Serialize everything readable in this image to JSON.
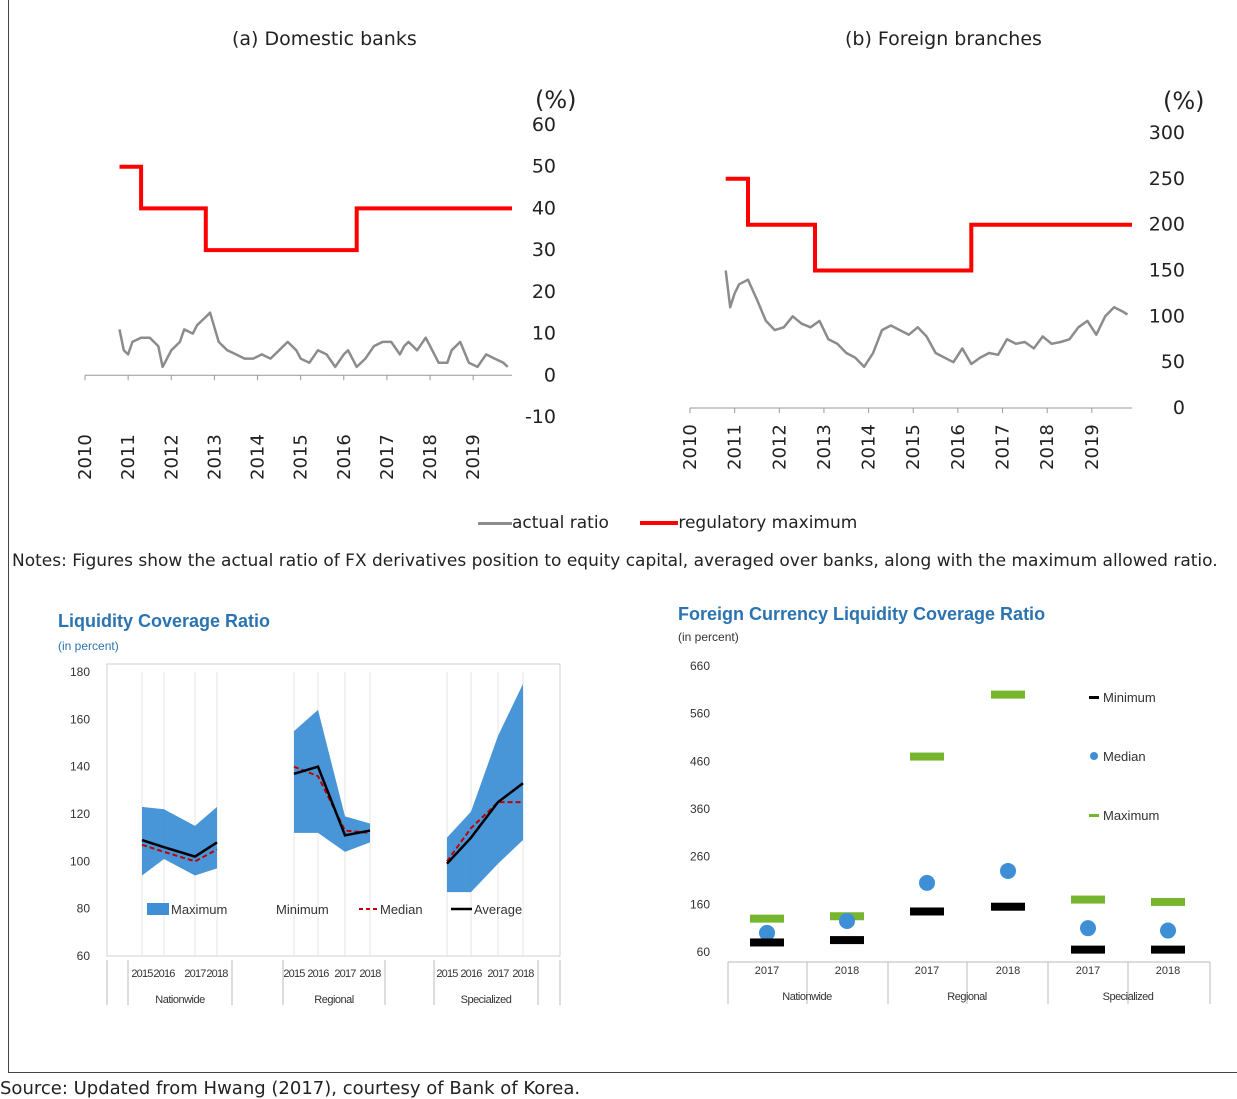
{
  "header": {
    "banner": ""
  },
  "legend_top": {
    "actual": "actual ratio",
    "maximum": "regulatory maximum"
  },
  "notes": "Notes: Figures show the actual ratio of FX derivatives position to equity capital, averaged over banks, along with the maximum allowed ratio.",
  "source": "Source: Updated from Hwang (2017), courtesy of Bank of Korea.",
  "colors": {
    "actual": "#8c8c8c",
    "maximum": "#ff0000",
    "band": "#3e8fd6",
    "average": "#000000",
    "median": "#c00000",
    "fcl_max": "#77b52e",
    "fcl_median": "#3e8fd6",
    "fcl_min": "#000000"
  },
  "chart_data": [
    {
      "type": "line",
      "title": "(a) Domestic banks",
      "unit": "(%)",
      "x_ticks": [
        "2010",
        "2011",
        "2012",
        "2013",
        "2014",
        "2015",
        "2016",
        "2017",
        "2018",
        "2019"
      ],
      "y_ticks": [
        "60",
        "50",
        "40",
        "30",
        "20",
        "10",
        "0",
        "-10"
      ],
      "ylim": [
        -10,
        60
      ],
      "xlim": [
        2010,
        2019.9
      ],
      "series": [
        {
          "key": "maximum",
          "x": [
            2010.8,
            2011.3,
            2011.3,
            2012.8,
            2012.8,
            2016.3,
            2016.3,
            2019.9
          ],
          "y": [
            50,
            50,
            40,
            40,
            30,
            30,
            40,
            40
          ]
        },
        {
          "key": "actual",
          "x": [
            2010.8,
            2010.9,
            2011.0,
            2011.1,
            2011.3,
            2011.5,
            2011.7,
            2011.8,
            2012.0,
            2012.2,
            2012.3,
            2012.5,
            2012.6,
            2012.8,
            2012.9,
            2013.1,
            2013.3,
            2013.5,
            2013.7,
            2013.9,
            2014.1,
            2014.3,
            2014.5,
            2014.7,
            2014.9,
            2015.0,
            2015.2,
            2015.4,
            2015.6,
            2015.8,
            2016.0,
            2016.1,
            2016.3,
            2016.5,
            2016.7,
            2016.9,
            2017.1,
            2017.3,
            2017.4,
            2017.5,
            2017.7,
            2017.9,
            2018.0,
            2018.2,
            2018.4,
            2018.5,
            2018.7,
            2018.9,
            2019.1,
            2019.3,
            2019.5,
            2019.7,
            2019.8
          ],
          "y": [
            11,
            6,
            5,
            8,
            9,
            9,
            7,
            2,
            6,
            8,
            11,
            10,
            12,
            14,
            15,
            8,
            6,
            5,
            4,
            4,
            5,
            4,
            6,
            8,
            6,
            4,
            3,
            6,
            5,
            2,
            5,
            6,
            2,
            4,
            7,
            8,
            8,
            5,
            7,
            8,
            6,
            9,
            7,
            3,
            3,
            6,
            8,
            3,
            2,
            5,
            4,
            3,
            2
          ]
        }
      ]
    },
    {
      "type": "line",
      "title": "(b) Foreign branches",
      "unit": "(%)",
      "x_ticks": [
        "2010",
        "2011",
        "2012",
        "2013",
        "2014",
        "2015",
        "2016",
        "2017",
        "2018",
        "2019"
      ],
      "y_ticks": [
        "300",
        "250",
        "200",
        "150",
        "100",
        "50",
        "0"
      ],
      "ylim": [
        0,
        300
      ],
      "xlim": [
        2010,
        2019.9
      ],
      "series": [
        {
          "key": "maximum",
          "x": [
            2010.8,
            2011.3,
            2011.3,
            2012.8,
            2012.8,
            2016.3,
            2016.3,
            2019.9
          ],
          "y": [
            250,
            250,
            200,
            200,
            150,
            150,
            200,
            200
          ]
        },
        {
          "key": "actual",
          "x": [
            2010.8,
            2010.9,
            2011.0,
            2011.1,
            2011.3,
            2011.5,
            2011.7,
            2011.9,
            2012.1,
            2012.3,
            2012.5,
            2012.7,
            2012.9,
            2013.1,
            2013.3,
            2013.5,
            2013.7,
            2013.9,
            2014.1,
            2014.3,
            2014.5,
            2014.7,
            2014.9,
            2015.1,
            2015.3,
            2015.5,
            2015.7,
            2015.9,
            2016.1,
            2016.3,
            2016.5,
            2016.7,
            2016.9,
            2017.1,
            2017.3,
            2017.5,
            2017.7,
            2017.9,
            2018.1,
            2018.3,
            2018.5,
            2018.7,
            2018.9,
            2019.1,
            2019.3,
            2019.5,
            2019.7,
            2019.8
          ],
          "y": [
            150,
            110,
            125,
            135,
            140,
            118,
            95,
            85,
            88,
            100,
            92,
            88,
            95,
            75,
            70,
            60,
            55,
            45,
            60,
            85,
            90,
            85,
            80,
            88,
            78,
            60,
            55,
            50,
            65,
            48,
            55,
            60,
            58,
            75,
            70,
            72,
            65,
            78,
            70,
            72,
            75,
            88,
            95,
            80,
            100,
            110,
            105,
            102
          ]
        }
      ]
    },
    {
      "type": "area",
      "title": "Liquidity Coverage Ratio",
      "subtitle": "(in percent)",
      "y_ticks": [
        "180",
        "160",
        "140",
        "120",
        "100",
        "80",
        "60"
      ],
      "ylim": [
        60,
        180
      ],
      "year_labels": [
        "2015",
        "2016",
        "2017",
        "2018"
      ],
      "groups": [
        "Nationwide",
        "Regional",
        "Specialized"
      ],
      "legend": [
        "Maximum",
        "Minimum",
        "Median",
        "Average"
      ],
      "series": [
        {
          "name": "Maximum",
          "group": "Nationwide",
          "values": [
            123,
            122,
            115,
            123
          ]
        },
        {
          "name": "Minimum",
          "group": "Nationwide",
          "values": [
            94,
            101,
            94,
            97
          ]
        },
        {
          "name": "Median",
          "group": "Nationwide",
          "values": [
            107,
            104,
            100,
            105
          ]
        },
        {
          "name": "Average",
          "group": "Nationwide",
          "values": [
            109,
            106,
            102,
            108
          ]
        },
        {
          "name": "Maximum",
          "group": "Regional",
          "values": [
            155,
            164,
            119,
            116
          ]
        },
        {
          "name": "Minimum",
          "group": "Regional",
          "values": [
            112,
            112,
            104,
            108
          ]
        },
        {
          "name": "Median",
          "group": "Regional",
          "values": [
            140,
            136,
            113,
            112
          ]
        },
        {
          "name": "Average",
          "group": "Regional",
          "values": [
            137,
            140,
            111,
            113
          ]
        },
        {
          "name": "Maximum",
          "group": "Specialized",
          "values": [
            110,
            121,
            153,
            175
          ]
        },
        {
          "name": "Minimum",
          "group": "Specialized",
          "values": [
            87,
            87,
            99,
            109
          ]
        },
        {
          "name": "Median",
          "group": "Specialized",
          "values": [
            100,
            114,
            125,
            125
          ]
        },
        {
          "name": "Average",
          "group": "Specialized",
          "values": [
            99,
            110,
            125,
            133
          ]
        }
      ]
    },
    {
      "type": "scatter",
      "title": "Foreign Currency Liquidity Coverage Ratio",
      "subtitle": "(in percent)",
      "y_ticks": [
        "660",
        "560",
        "460",
        "360",
        "260",
        "160",
        "60"
      ],
      "ylim": [
        60,
        660
      ],
      "year_labels": [
        "2017",
        "2018",
        "2017",
        "2018",
        "2017",
        "2018"
      ],
      "groups": [
        "Nationwide",
        "Regional",
        "Specialized"
      ],
      "legend": [
        "Minimum",
        "Median",
        "Maximum"
      ],
      "series": [
        {
          "name": "Minimum",
          "values": [
            80,
            85,
            145,
            155,
            65,
            65
          ]
        },
        {
          "name": "Median",
          "values": [
            100,
            125,
            205,
            230,
            110,
            105
          ]
        },
        {
          "name": "Maximum",
          "values": [
            130,
            135,
            470,
            600,
            170,
            165
          ]
        }
      ]
    }
  ]
}
